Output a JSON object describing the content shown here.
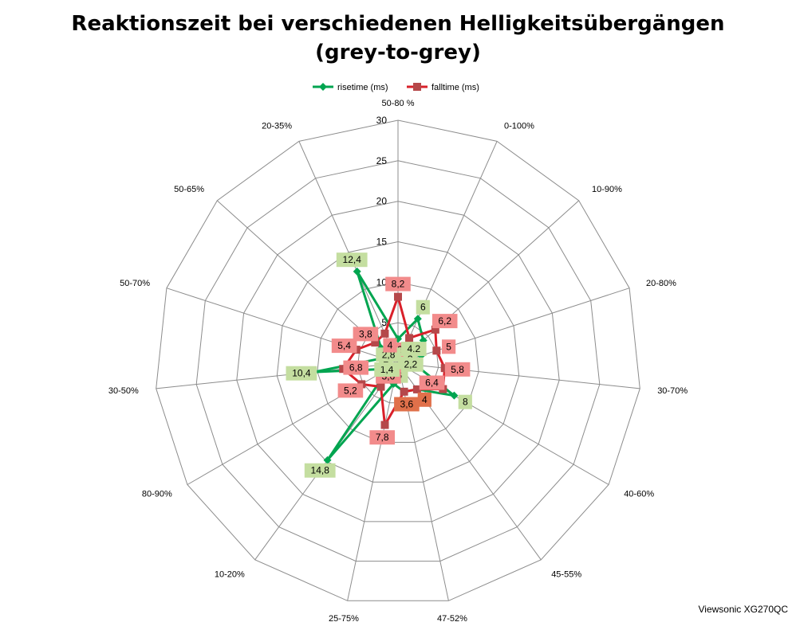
{
  "chart_data": {
    "type": "radar",
    "title": [
      "Reaktionszeit bei verschiedenen Helligkeitsübergängen",
      "(grey-to-grey)"
    ],
    "categories": [
      "50-80 %",
      "0-100%",
      "10-90%",
      "20-80%",
      "30-70%",
      "40-60%",
      "45-55%",
      "47-52%",
      "25-75%",
      "10-20%",
      "80-90%",
      "30-50%",
      "50-70%",
      "50-65%",
      "20-35%"
    ],
    "series": [
      {
        "name": "risetime (ms)",
        "color": "#00a550",
        "marker": "diamond",
        "values": [
          3,
          6,
          4.2,
          3,
          2.2,
          8,
          4,
          3.6,
          2.6,
          14.8,
          1.4,
          10.4,
          2,
          2.8,
          12.4
        ]
      },
      {
        "name": "falltime (ms)",
        "color": "#d9202a",
        "marker": "square",
        "values": [
          8.2,
          3.4,
          6.2,
          5,
          5.8,
          6.4,
          4,
          3.6,
          7.8,
          3.6,
          5.2,
          6.8,
          5.4,
          3.8,
          4
        ]
      }
    ],
    "axis": {
      "min": 0,
      "max": 30,
      "step": 5,
      "ticks": [
        "0",
        "5",
        "10",
        "15",
        "20",
        "25",
        "30"
      ]
    },
    "data_labels": {
      "rise": [
        "3",
        "6",
        "4,2",
        "3",
        "2,2",
        "8",
        "4",
        "3,6",
        "2,6",
        "14,8",
        "1,4",
        "10,4",
        "2",
        "2,8",
        "12,4"
      ],
      "fall": [
        "8,2",
        "3,4",
        "6,2",
        "5",
        "5,8",
        "6,4",
        "4",
        "3,6",
        "7,8",
        "3,6",
        "5,2",
        "6,8",
        "5,4",
        "3,8",
        "4"
      ]
    },
    "label_colors": {
      "rise": "#c4dea0",
      "fall": "#f28b8b",
      "equal": "#e0704a"
    },
    "legend": {
      "position": "top"
    },
    "grid": true
  },
  "footer": "Viewsonic XG270QC"
}
